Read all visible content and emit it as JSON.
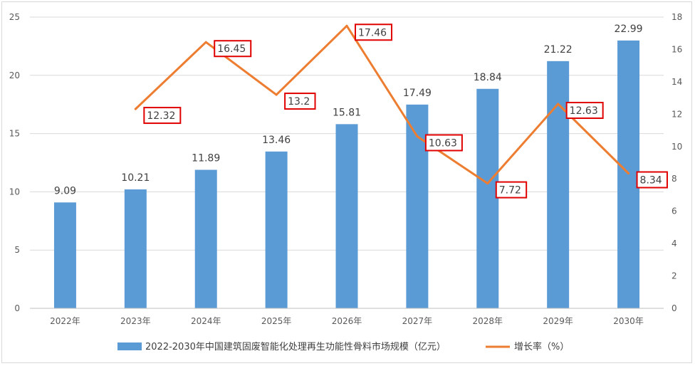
{
  "chart_data": {
    "type": "bar",
    "categories": [
      "2022年",
      "2023年",
      "2024年",
      "2025年",
      "2026年",
      "2027年",
      "2028年",
      "2029年",
      "2030年"
    ],
    "series": [
      {
        "name": "2022-2030年中国建筑固废智能化处理再生功能性骨料市场规模（亿元）",
        "type": "bar",
        "axis": "left",
        "color": "#5b9bd5",
        "values": [
          9.09,
          10.21,
          11.89,
          13.46,
          15.81,
          17.49,
          18.84,
          21.22,
          22.99
        ],
        "labels": [
          "9.09",
          "10.21",
          "11.89",
          "13.46",
          "15.81",
          "17.49",
          "18.84",
          "21.22",
          "22.99"
        ]
      },
      {
        "name": "增长率（%）",
        "type": "line",
        "axis": "right",
        "color": "#ed7d31",
        "values": [
          null,
          12.32,
          16.45,
          13.2,
          17.46,
          10.63,
          7.72,
          12.63,
          8.34
        ],
        "labels": [
          null,
          "12.32",
          "16.45",
          "13.2",
          "17.46",
          "10.63",
          "7.72",
          "12.63",
          "8.34"
        ],
        "label_box_color": "#e00000"
      }
    ],
    "y_left": {
      "lim": [
        0,
        25
      ],
      "ticks": [
        "0",
        "5",
        "10",
        "15",
        "20",
        "25"
      ]
    },
    "y_right": {
      "lim": [
        0,
        18
      ],
      "ticks": [
        "0",
        "2",
        "4",
        "6",
        "8",
        "10",
        "12",
        "14",
        "16",
        "18"
      ]
    },
    "grid": true,
    "legend_position": "bottom",
    "title": "",
    "xlabel": "",
    "ylabel": ""
  }
}
